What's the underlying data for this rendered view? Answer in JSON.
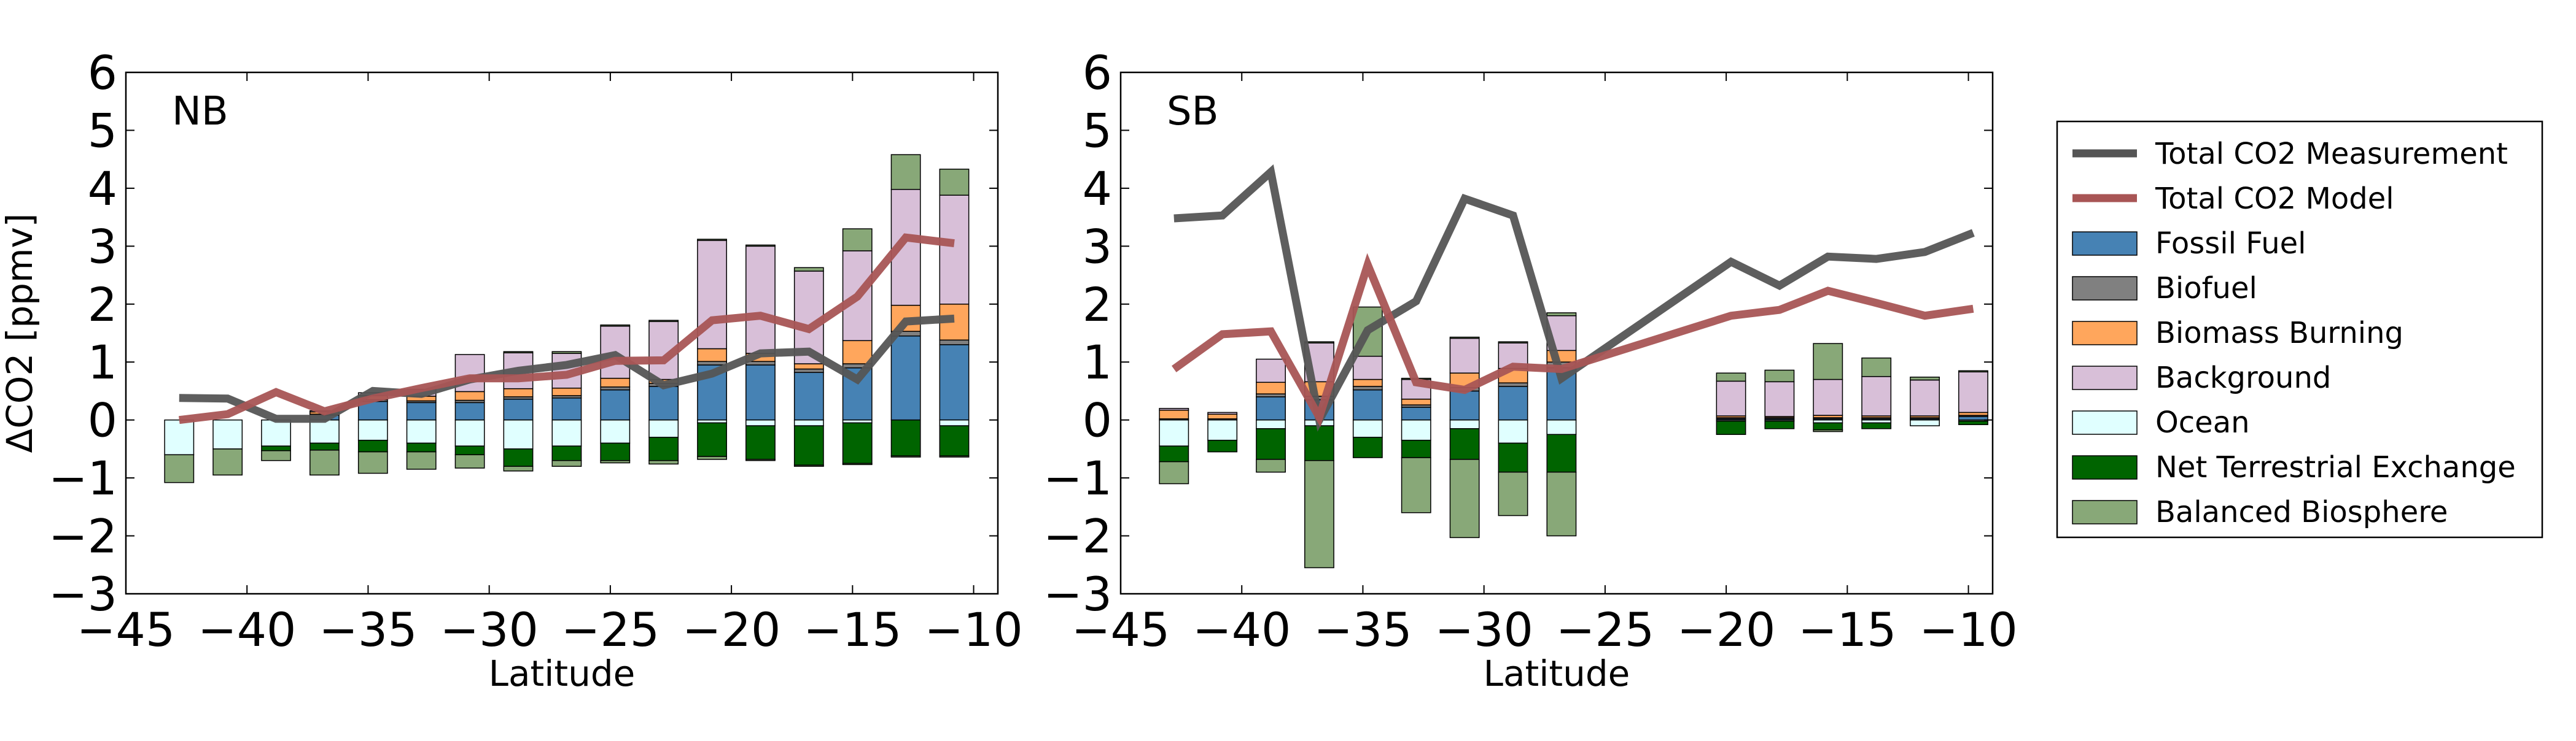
{
  "legend": {
    "location": "right",
    "entries": [
      {
        "key": "measurement",
        "label": "Total CO2 Measurement",
        "kind": "line",
        "color": "#555555"
      },
      {
        "key": "model",
        "label": "Total CO2 Model",
        "kind": "line",
        "color": "#a85555"
      },
      {
        "key": "fossil",
        "label": "Fossil Fuel",
        "kind": "patch",
        "color": "#4682b4"
      },
      {
        "key": "biofuel",
        "label": "Biofuel",
        "kind": "patch",
        "color": "#808080"
      },
      {
        "key": "biomass",
        "label": "Biomass Burning",
        "kind": "patch",
        "color": "#ffa65c"
      },
      {
        "key": "background",
        "label": "Background",
        "kind": "patch",
        "color": "#d8bfd8"
      },
      {
        "key": "ocean",
        "label": "Ocean",
        "kind": "patch",
        "color": "#e0ffff"
      },
      {
        "key": "net",
        "label": "Net Terrestrial Exchange",
        "kind": "patch",
        "color": "#006400"
      },
      {
        "key": "balanced",
        "label": "Balanced Biosphere",
        "kind": "patch",
        "color": "#88a878"
      }
    ]
  },
  "chart_data": [
    {
      "type": "bar",
      "stacked": true,
      "panel_label": "NB",
      "xlabel": "Latitude",
      "ylabel": "ΔCO2 [ppmv]",
      "xlim": [
        -45,
        -9
      ],
      "ylim": [
        -3,
        6
      ],
      "x_ticks": [
        "−45",
        "−40",
        "−35",
        "−30",
        "−25",
        "−20",
        "−15",
        "−10"
      ],
      "y_ticks": [
        "−3",
        "−2",
        "−1",
        "0",
        "1",
        "2",
        "3",
        "4",
        "5",
        "6"
      ],
      "bar_width": 1.2,
      "x": [
        -42.8,
        -40.8,
        -38.8,
        -36.8,
        -34.8,
        -32.8,
        -30.8,
        -28.8,
        -26.8,
        -24.8,
        -22.8,
        -20.8,
        -18.8,
        -16.8,
        -14.8,
        -12.8,
        -10.8
      ],
      "positive": {
        "fossil": [
          0,
          0,
          0,
          0.08,
          0.32,
          0.3,
          0.3,
          0.36,
          0.38,
          0.52,
          0.58,
          0.95,
          0.95,
          0.82,
          0.9,
          1.45,
          1.3
        ],
        "biofuel": [
          0,
          0,
          0,
          0.02,
          0.03,
          0.03,
          0.04,
          0.04,
          0.04,
          0.05,
          0.05,
          0.06,
          0.06,
          0.06,
          0.07,
          0.08,
          0.08
        ],
        "biomass": [
          0,
          0,
          0,
          0.04,
          0.07,
          0.08,
          0.15,
          0.14,
          0.13,
          0.15,
          0.07,
          0.22,
          0.14,
          0.09,
          0.4,
          0.45,
          0.62
        ],
        "background": [
          0,
          0,
          0,
          0.02,
          0.05,
          0.12,
          0.64,
          0.62,
          0.6,
          0.9,
          1.0,
          1.87,
          1.85,
          1.6,
          1.55,
          2.0,
          1.88
        ],
        "balanced": [
          0,
          0,
          0,
          0,
          0,
          0,
          0,
          0.02,
          0.03,
          0.02,
          0.02,
          0.02,
          0.02,
          0.06,
          0.38,
          0.6,
          0.45
        ]
      },
      "negative": {
        "ocean": [
          -0.6,
          -0.5,
          -0.45,
          -0.4,
          -0.35,
          -0.4,
          -0.45,
          -0.5,
          -0.45,
          -0.4,
          -0.3,
          -0.05,
          -0.1,
          -0.1,
          -0.05,
          0,
          -0.1
        ],
        "net": [
          0,
          0,
          -0.08,
          -0.12,
          -0.2,
          -0.15,
          -0.15,
          -0.3,
          -0.25,
          -0.3,
          -0.4,
          -0.58,
          -0.58,
          -0.68,
          -0.7,
          -0.62,
          -0.52
        ],
        "balanced": [
          -0.48,
          -0.45,
          -0.17,
          -0.43,
          -0.37,
          -0.3,
          -0.23,
          -0.08,
          -0.1,
          -0.04,
          -0.06,
          -0.05,
          -0.02,
          -0.02,
          -0.02,
          -0.02,
          -0.02
        ]
      },
      "series": [
        {
          "name": "Total CO2 Measurement",
          "x": [
            -42.8,
            -40.8,
            -38.8,
            -36.8,
            -34.8,
            -32.8,
            -30.8,
            -28.8,
            -26.8,
            -24.8,
            -22.8,
            -20.8,
            -18.8,
            -16.8,
            -14.8,
            -12.8,
            -10.8
          ],
          "values": [
            0.38,
            0.37,
            0.02,
            0.02,
            0.5,
            0.45,
            0.7,
            0.85,
            0.95,
            1.12,
            0.6,
            0.8,
            1.15,
            1.18,
            0.7,
            1.7,
            1.75
          ]
        },
        {
          "name": "Total CO2 Model",
          "x": [
            -42.8,
            -40.8,
            -38.8,
            -36.8,
            -34.8,
            -32.8,
            -30.8,
            -28.8,
            -26.8,
            -24.8,
            -22.8,
            -20.8,
            -18.8,
            -16.8,
            -14.8,
            -12.8,
            -10.8
          ],
          "values": [
            0.0,
            0.1,
            0.48,
            0.15,
            0.37,
            0.55,
            0.72,
            0.72,
            0.78,
            1.02,
            1.03,
            1.72,
            1.8,
            1.57,
            2.13,
            3.15,
            3.05
          ]
        }
      ]
    },
    {
      "type": "bar",
      "stacked": true,
      "panel_label": "SB",
      "xlabel": "Latitude",
      "ylabel": "",
      "xlim": [
        -45,
        -9
      ],
      "ylim": [
        -3,
        6
      ],
      "x_ticks": [
        "−45",
        "−40",
        "−35",
        "−30",
        "−25",
        "−20",
        "−15",
        "−10"
      ],
      "y_ticks": [
        "−3",
        "−2",
        "−1",
        "0",
        "1",
        "2",
        "3",
        "4",
        "5",
        "6"
      ],
      "bar_width": 1.2,
      "x": [
        -42.8,
        -40.8,
        -38.8,
        -36.8,
        -34.8,
        -32.8,
        -30.8,
        -28.8,
        -26.8,
        -19.8,
        -17.8,
        -15.8,
        -13.8,
        -11.8,
        -9.8
      ],
      "positive": {
        "fossil": [
          0,
          0,
          0.4,
          0.35,
          0.52,
          0.22,
          0.5,
          0.58,
          0.9,
          0.02,
          0.02,
          0.02,
          0.02,
          0.02,
          0.06
        ],
        "biofuel": [
          0.02,
          0.02,
          0.05,
          0.06,
          0.06,
          0.04,
          0.06,
          0.06,
          0.1,
          0.02,
          0.02,
          0.02,
          0.02,
          0.02,
          0.02
        ],
        "biomass": [
          0.15,
          0.08,
          0.2,
          0.25,
          0.12,
          0.1,
          0.25,
          0.25,
          0.2,
          0.03,
          0.02,
          0.04,
          0.03,
          0.03,
          0.05
        ],
        "background": [
          0.03,
          0.03,
          0.4,
          0.67,
          0.4,
          0.34,
          0.6,
          0.44,
          0.6,
          0.6,
          0.6,
          0.62,
          0.68,
          0.62,
          0.7
        ],
        "balanced": [
          0,
          0,
          0,
          0.02,
          0.85,
          0.02,
          0.02,
          0.02,
          0.05,
          0.14,
          0.2,
          0.62,
          0.32,
          0.05,
          0.02
        ]
      },
      "negative": {
        "ocean": [
          -0.45,
          -0.35,
          -0.15,
          -0.1,
          -0.3,
          -0.35,
          -0.15,
          -0.4,
          -0.25,
          -0.02,
          -0.02,
          -0.05,
          -0.05,
          -0.1,
          -0.02
        ],
        "net": [
          -0.27,
          -0.2,
          -0.53,
          -0.6,
          -0.35,
          -0.3,
          -0.53,
          -0.5,
          -0.65,
          -0.23,
          -0.13,
          -0.12,
          -0.1,
          0,
          -0.06
        ],
        "balanced": [
          -0.38,
          0,
          -0.22,
          -1.85,
          0,
          -0.95,
          -1.35,
          -0.75,
          -1.1,
          0,
          0,
          -0.03,
          0,
          0,
          0
        ]
      },
      "series": [
        {
          "name": "Total CO2 Measurement",
          "x": [
            -42.8,
            -40.8,
            -38.8,
            -36.8,
            -34.8,
            -32.8,
            -30.8,
            -28.8,
            -26.8,
            -19.8,
            -17.8,
            -15.8,
            -13.8,
            -11.8,
            -9.8
          ],
          "values": [
            3.48,
            3.53,
            4.28,
            0.0,
            1.55,
            2.05,
            3.82,
            3.53,
            0.72,
            2.73,
            2.32,
            2.82,
            2.78,
            2.9,
            3.23
          ]
        },
        {
          "name": "Total CO2 Model",
          "x": [
            -42.8,
            -40.8,
            -38.8,
            -36.8,
            -34.8,
            -32.8,
            -30.8,
            -28.8,
            -26.8,
            -19.8,
            -17.8,
            -15.8,
            -13.8,
            -11.8,
            -9.8
          ],
          "values": [
            0.88,
            1.48,
            1.53,
            0.05,
            2.68,
            0.65,
            0.52,
            0.92,
            0.88,
            1.8,
            1.9,
            2.23,
            2.02,
            1.8,
            1.92
          ]
        }
      ]
    }
  ]
}
